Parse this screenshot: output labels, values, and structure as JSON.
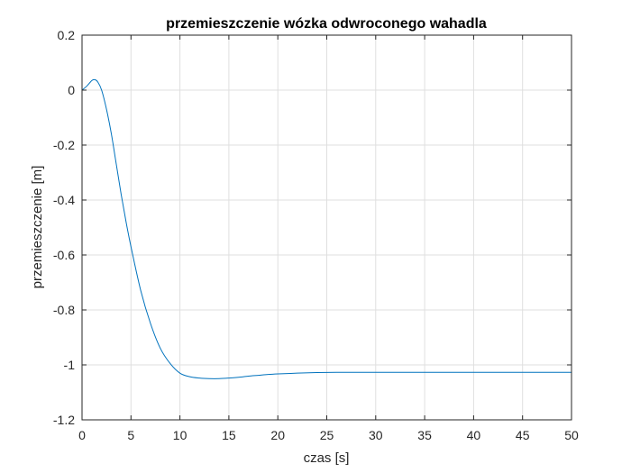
{
  "chart_data": {
    "type": "line",
    "title": "przemieszczenie wózka odwroconego wahadla",
    "xlabel": "czas [s]",
    "ylabel": "przemieszczenie [m]",
    "xlim": [
      0,
      50
    ],
    "ylim": [
      -1.2,
      0.2
    ],
    "xticks": [
      0,
      5,
      10,
      15,
      20,
      25,
      30,
      35,
      40,
      45,
      50
    ],
    "yticks": [
      0.2,
      0,
      -0.2,
      -0.4,
      -0.6,
      -0.8,
      -1,
      -1.2
    ],
    "xtick_labels": [
      "0",
      "5",
      "10",
      "15",
      "20",
      "25",
      "30",
      "35",
      "40",
      "45",
      "50"
    ],
    "ytick_labels": [
      "0.2",
      "0",
      "-0.2",
      "-0.4",
      "-0.6",
      "-0.8",
      "-1",
      "-1.2"
    ],
    "grid": true,
    "series": [
      {
        "color": "#0072BD",
        "x": [
          0,
          0.5,
          1.0,
          1.3,
          1.6,
          2.0,
          2.5,
          3.0,
          3.5,
          4.0,
          4.5,
          5.0,
          6.0,
          7.0,
          8.0,
          9.0,
          10.0,
          11.0,
          12.0,
          13.0,
          14.0,
          15.0,
          16.0,
          17.0,
          18.0,
          19.0,
          20.0,
          22.0,
          24.0,
          26.0,
          28.0,
          30.0,
          35.0,
          40.0,
          45.0,
          50.0
        ],
        "y": [
          0,
          0.015,
          0.035,
          0.038,
          0.03,
          0.0,
          -0.07,
          -0.16,
          -0.27,
          -0.38,
          -0.48,
          -0.57,
          -0.73,
          -0.85,
          -0.94,
          -0.995,
          -1.03,
          -1.043,
          -1.048,
          -1.05,
          -1.05,
          -1.048,
          -1.045,
          -1.041,
          -1.038,
          -1.035,
          -1.033,
          -1.03,
          -1.028,
          -1.027,
          -1.027,
          -1.027,
          -1.027,
          -1.027,
          -1.027,
          -1.027
        ]
      }
    ]
  }
}
